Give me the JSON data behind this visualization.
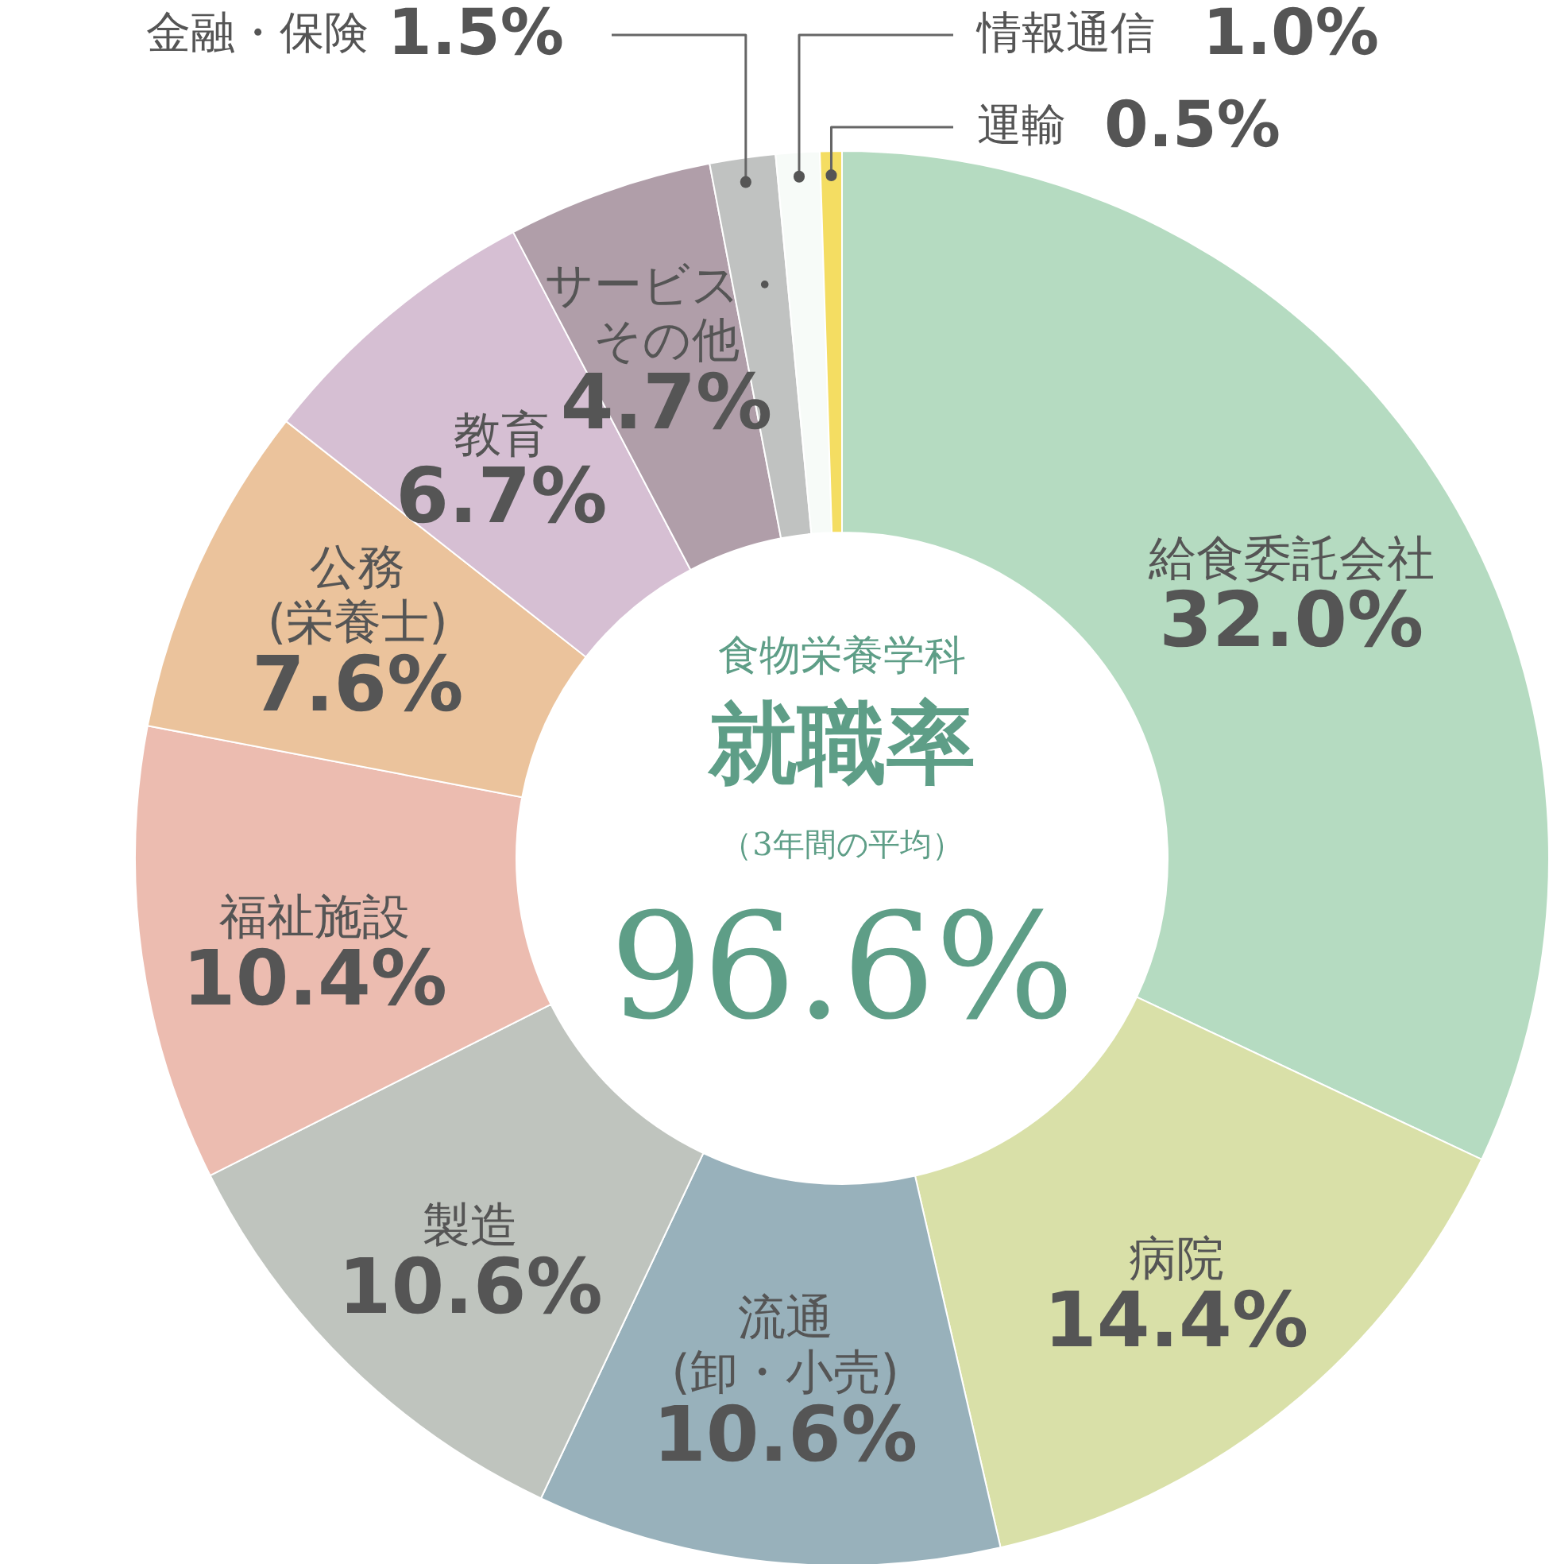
{
  "chart_data": {
    "type": "donut",
    "title": "食物栄養学科",
    "subtitle": "就職率",
    "annotations": [
      "（3年間の平均）",
      "96.6%"
    ],
    "categories": [
      "給食委託会社",
      "病院",
      "流通(卸・小売)",
      "製造",
      "福祉施設",
      "公務(栄養士)",
      "教育",
      "サービス・その他",
      "金融・保険",
      "情報通信",
      "運輸"
    ],
    "values": [
      32.0,
      14.4,
      10.6,
      10.6,
      10.4,
      7.6,
      6.7,
      4.7,
      1.5,
      1.0,
      0.5
    ],
    "value_labels": [
      "32.0%",
      "14.4%",
      "10.6%",
      "10.6%",
      "10.4%",
      "7.6%",
      "6.7%",
      "4.7%",
      "1.5%",
      "1.0%",
      "0.5%"
    ],
    "colors": [
      "#b5dbc1",
      "#d9e0a8",
      "#98b1bb",
      "#bfc4be",
      "#ecbcb0",
      "#ebc39c",
      "#d6bfd3",
      "#b09ea9",
      "#c0c2c1",
      "#f7fbf8",
      "#f4dd62"
    ]
  }
}
